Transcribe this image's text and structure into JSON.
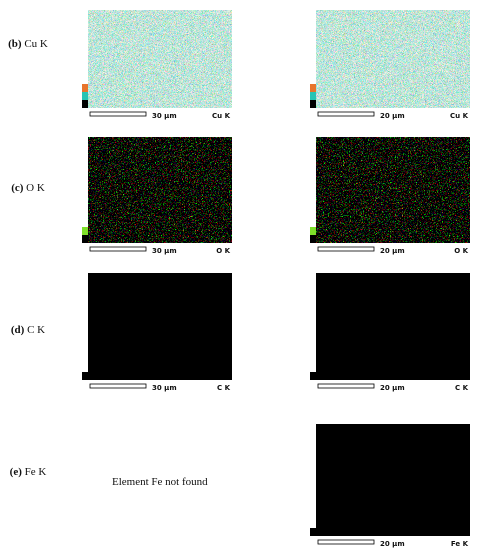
{
  "panels": [
    {
      "label": "(b)",
      "element": "Cu K",
      "left": {
        "scale": "30 μm",
        "name": "Cu K"
      },
      "right": {
        "scale": "20 μm",
        "name": "Cu K"
      }
    },
    {
      "label": "(c)",
      "element": "O K",
      "left": {
        "scale": "30 μm",
        "name": "O K"
      },
      "right": {
        "scale": "20 μm",
        "name": "O K"
      }
    },
    {
      "label": "(d)",
      "element": "C K",
      "left": {
        "scale": "30 μm",
        "name": "C K"
      },
      "right": {
        "scale": "20 μm",
        "name": "C K"
      }
    },
    {
      "label": "(e)",
      "element": "Fe K",
      "message": "Element Fe not found",
      "right": {
        "scale": "20 μm",
        "name": "Fe K"
      }
    }
  ]
}
